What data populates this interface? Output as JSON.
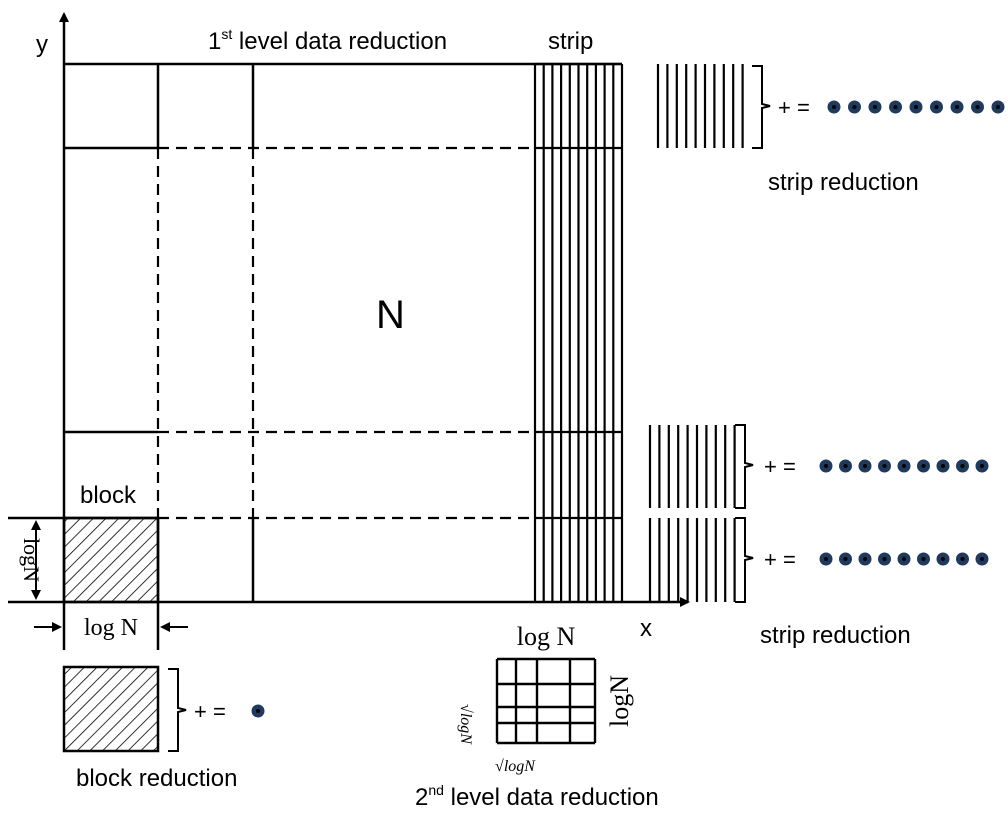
{
  "axes": {
    "x_label": "x",
    "y_label": "y"
  },
  "labels": {
    "first_level_prefix": "1",
    "first_level_sup": "st",
    "first_level_text": " level data reduction",
    "strip": "strip",
    "n": "N",
    "block": "block",
    "log_n_side": "logN",
    "log_n_bottom": "log N",
    "strip_reduction_top": "strip reduction",
    "strip_reduction_bottom": "strip reduction",
    "plus_equals": "+ =",
    "block_reduction": "block reduction",
    "grid_top": "log N",
    "grid_right": "logN",
    "sqrt_left": "√logN",
    "sqrt_bottom": "√logN",
    "second_level_prefix": "2",
    "second_level_sup": "nd",
    "second_level_text": " level data reduction"
  },
  "colors": {
    "dot_fill": "#1f3a5c",
    "dot_center": "#000000",
    "line": "#000000"
  }
}
